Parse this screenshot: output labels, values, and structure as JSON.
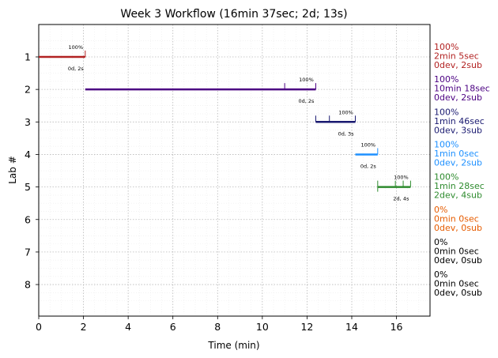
{
  "chart_data": {
    "type": "gantt",
    "title": "Week 3 Workflow (16min 37sec; 2d; 13s)",
    "xlabel": "Time (min)",
    "ylabel": "Lab #",
    "xlim": [
      0,
      17.5
    ],
    "ylim_labs": [
      1,
      8
    ],
    "x_ticks": [
      0,
      2,
      4,
      6,
      8,
      10,
      12,
      14,
      16
    ],
    "grid": true,
    "labs": [
      {
        "lab": "1",
        "color": "#b22222",
        "start": 0.0,
        "end": 2.08,
        "marks": [
          2.08
        ],
        "pct_label": "100%",
        "detail_label": "0d, 2s",
        "side": [
          "100%",
          "2min 5sec",
          "0dev, 2sub"
        ]
      },
      {
        "lab": "2",
        "color": "#4b0082",
        "start": 2.08,
        "end": 12.39,
        "marks": [
          11.0,
          12.39
        ],
        "pct_label": "100%",
        "detail_label": "0d, 2s",
        "side": [
          "100%",
          "10min 18sec",
          "0dev, 2sub"
        ]
      },
      {
        "lab": "3",
        "color": "#191970",
        "start": 12.39,
        "end": 14.16,
        "marks": [
          12.39,
          13.0,
          14.16
        ],
        "pct_label": "100%",
        "detail_label": "0d, 3s",
        "side": [
          "100%",
          "1min 46sec",
          "0dev, 3sub"
        ]
      },
      {
        "lab": "4",
        "color": "#1e90ff",
        "start": 14.16,
        "end": 15.16,
        "marks": [
          15.16
        ],
        "pct_label": "100%",
        "detail_label": "0d, 2s",
        "side": [
          "100%",
          "1min 0sec",
          "0dev, 2sub"
        ]
      },
      {
        "lab": "5",
        "color": "#2e8b2e",
        "start": 15.16,
        "end": 16.63,
        "marks": [
          15.16,
          15.95,
          16.3,
          16.63
        ],
        "pct_label": "100%",
        "detail_label": "2d, 4s",
        "side": [
          "100%",
          "1min 28sec",
          "2dev, 4sub"
        ]
      },
      {
        "lab": "6",
        "color": "#e65c00",
        "start": null,
        "end": null,
        "marks": [],
        "pct_label": "",
        "detail_label": "",
        "side": [
          "0%",
          "0min 0sec",
          "0dev, 0sub"
        ]
      },
      {
        "lab": "7",
        "color": "#000000",
        "start": null,
        "end": null,
        "marks": [],
        "pct_label": "",
        "detail_label": "",
        "side": [
          "0%",
          "0min 0sec",
          "0dev, 0sub"
        ]
      },
      {
        "lab": "8",
        "color": "#000000",
        "start": null,
        "end": null,
        "marks": [],
        "pct_label": "",
        "detail_label": "",
        "side": [
          "0%",
          "0min 0sec",
          "0dev, 0sub"
        ]
      }
    ]
  }
}
